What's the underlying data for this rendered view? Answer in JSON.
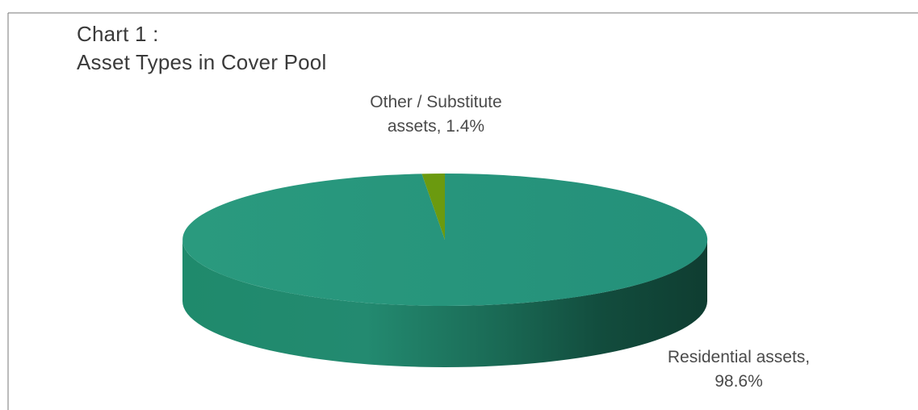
{
  "chart_data": {
    "type": "pie",
    "title": [
      "Chart 1 :",
      "Asset Types in Cover Pool"
    ],
    "slices": [
      {
        "name": "Residential assets",
        "value": 98.6,
        "label": [
          "Residential assets,",
          "98.6%"
        ],
        "color": "#27957a"
      },
      {
        "name": "Other / Substitute assets",
        "value": 1.4,
        "label": [
          "Other / Substitute",
          "assets, 1.4%"
        ],
        "color": "#6b9a0f"
      }
    ],
    "style": "3d"
  }
}
